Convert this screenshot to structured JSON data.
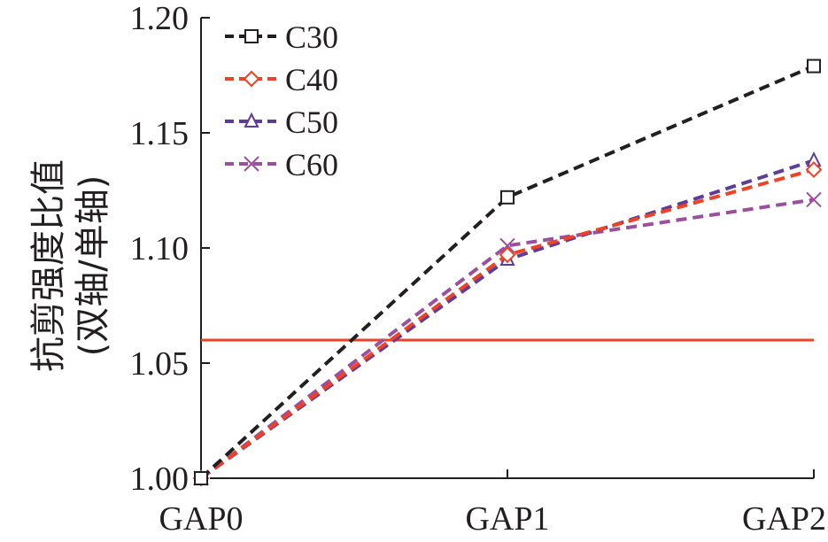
{
  "chart_data": {
    "type": "line",
    "title": "",
    "xlabel": "",
    "ylabel": "抗剪强度比值",
    "ylabel_line2": "(双轴/单轴)",
    "categories": [
      "GAP0",
      "GAP1",
      "GAP2"
    ],
    "ylim": [
      1.0,
      1.2
    ],
    "yticks": [
      "1.00",
      "1.05",
      "1.10",
      "1.15",
      "1.20"
    ],
    "ytick_values": [
      1.0,
      1.05,
      1.1,
      1.15,
      1.2
    ],
    "grid": false,
    "legend_position": "top-left",
    "series": [
      {
        "name": "C30",
        "values": [
          1.0,
          1.122,
          1.179
        ],
        "color": "#231f20",
        "marker": "square"
      },
      {
        "name": "C40",
        "values": [
          1.0,
          1.097,
          1.134
        ],
        "color": "#ef4123",
        "marker": "diamond"
      },
      {
        "name": "C50",
        "values": [
          1.0,
          1.095,
          1.138
        ],
        "color": "#5e3c99",
        "marker": "triangle"
      },
      {
        "name": "C60",
        "values": [
          1.0,
          1.101,
          1.121
        ],
        "color": "#9b4f9e",
        "marker": "x"
      }
    ],
    "reference_line": {
      "value": 1.06,
      "color": "#ef4123"
    }
  }
}
